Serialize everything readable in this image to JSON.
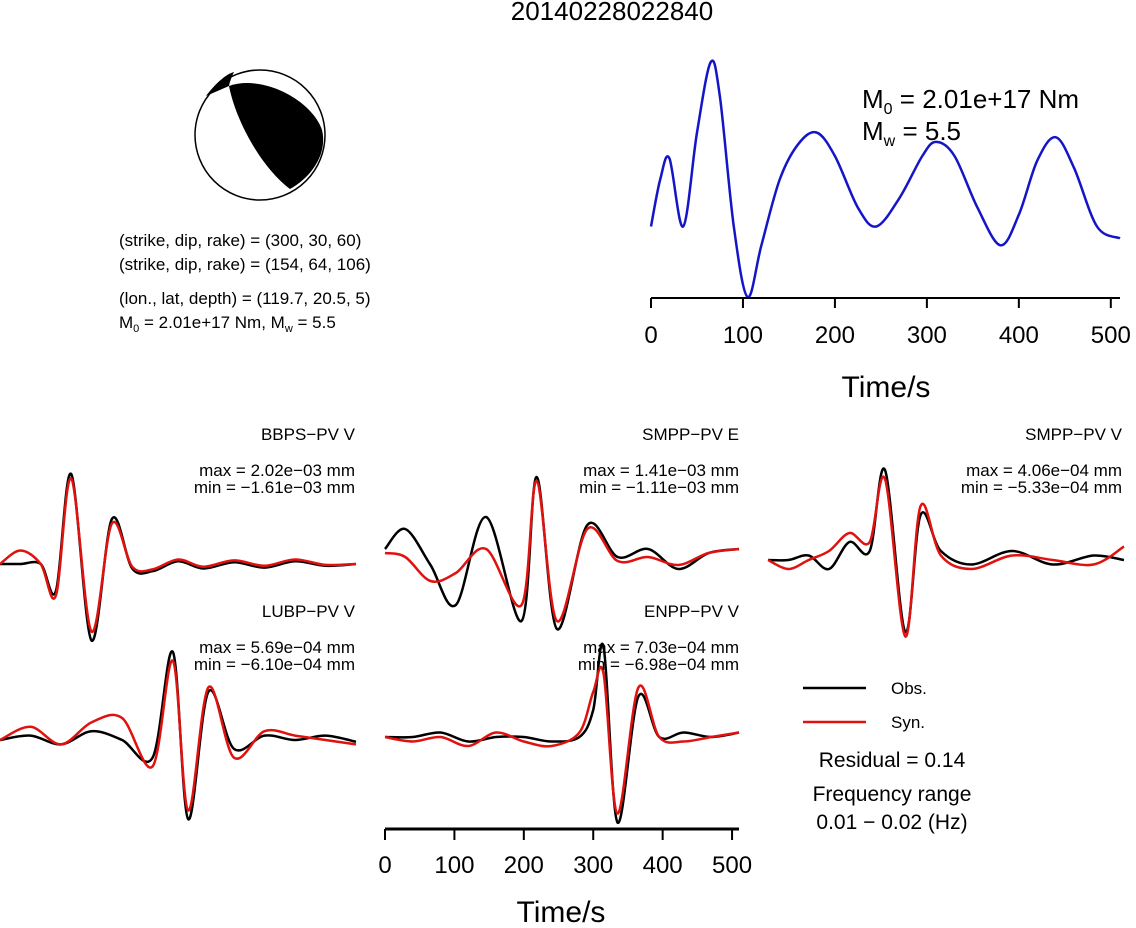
{
  "title": "20140228022840",
  "mechanism": {
    "plane1": "(strike, dip, rake) = (300, 30, 60)",
    "plane2": "(strike, dip, rake) = (154, 64, 106)",
    "location": "(lon., lat, depth) = (119.7, 20.5, 5)",
    "moment_line": {
      "m0_label": "M",
      "m0_sub": "0",
      "m0_value": " = 2.01e+17 Nm, M",
      "mw_sub": "w",
      "mw_value": " = 5.5"
    }
  },
  "stf": {
    "m0": {
      "label": "M",
      "sub": "0",
      "value": " = 2.01e+17 Nm"
    },
    "mw": {
      "label": "M",
      "sub": "w",
      "value": " = 5.5"
    },
    "xlabel": "Time/s",
    "ticks": [
      "0",
      "100",
      "200",
      "300",
      "400",
      "500"
    ]
  },
  "waveform_axis": {
    "xlabel": "Time/s",
    "ticks": [
      "0",
      "100",
      "200",
      "300",
      "400",
      "500"
    ]
  },
  "legend": {
    "obs": "Obs.",
    "syn": "Syn.",
    "residual": "Residual = 0.14",
    "freq_title": "Frequency range",
    "freq_value": "0.01 − 0.02 (Hz)"
  },
  "colors": {
    "observed": "#000000",
    "synthetic": "#e0120f",
    "stf": "#1515c8",
    "beachball_fill": "#000000"
  },
  "chart_data": [
    {
      "type": "line",
      "name": "source time function",
      "xlabel": "Time/s",
      "xlim": [
        0,
        510
      ],
      "x": [
        0,
        10,
        20,
        35,
        50,
        65,
        75,
        90,
        105,
        120,
        140,
        160,
        180,
        200,
        225,
        245,
        270,
        295,
        310,
        330,
        355,
        380,
        400,
        420,
        440,
        460,
        485,
        510
      ],
      "values": [
        0.3,
        0.5,
        0.59,
        0.3,
        0.7,
        1.0,
        0.85,
        0.3,
        0.0,
        0.22,
        0.5,
        0.65,
        0.7,
        0.6,
        0.38,
        0.3,
        0.42,
        0.6,
        0.66,
        0.6,
        0.38,
        0.22,
        0.35,
        0.58,
        0.68,
        0.55,
        0.3,
        0.25
      ],
      "annotations": [
        "M0 = 2.01e+17 Nm",
        "Mw = 5.5"
      ]
    },
    {
      "type": "line",
      "station": "BBPS−PV V",
      "max": "max = 2.02e−03 mm",
      "min": "min = −1.61e−03 mm",
      "x": [
        0,
        20,
        40,
        55,
        70,
        90,
        110,
        130,
        150,
        175,
        200,
        230,
        260,
        290,
        320,
        350
      ],
      "series": [
        {
          "name": "Obs.",
          "values": [
            0,
            0,
            0,
            -0.3,
            1.0,
            -0.85,
            0.5,
            -0.05,
            -0.08,
            0.03,
            -0.05,
            0.02,
            -0.04,
            0.03,
            -0.02,
            0
          ]
        },
        {
          "name": "Syn.",
          "values": [
            0,
            0.15,
            0,
            -0.35,
            0.95,
            -0.75,
            0.45,
            -0.03,
            -0.06,
            0.05,
            -0.03,
            0.04,
            -0.02,
            0.05,
            -0.01,
            0
          ]
        }
      ]
    },
    {
      "type": "line",
      "station": "SMPP−PV E",
      "max": "max = 1.41e−03 mm",
      "min": "min = −1.11e−03 mm",
      "x": [
        0,
        20,
        45,
        70,
        100,
        135,
        150,
        170,
        200,
        230,
        260,
        290,
        320,
        350
      ],
      "series": [
        {
          "name": "Obs.",
          "values": [
            0.1,
            0.35,
            -0.1,
            -0.6,
            0.5,
            -0.8,
            1.0,
            -0.9,
            0.4,
            0.0,
            0.1,
            -0.15,
            0.05,
            0.1
          ]
        },
        {
          "name": "Syn.",
          "values": [
            0.05,
            0.0,
            -0.3,
            -0.2,
            0.1,
            -0.6,
            0.95,
            -0.8,
            0.35,
            -0.05,
            0.0,
            -0.1,
            0.05,
            0.1
          ]
        }
      ]
    },
    {
      "type": "line",
      "station": "SMPP−PV V",
      "max": "max = 4.06e−04 mm",
      "min": "min = −5.33e−04 mm",
      "x": [
        0,
        20,
        40,
        60,
        80,
        100,
        115,
        135,
        150,
        170,
        200,
        240,
        280,
        320,
        350
      ],
      "series": [
        {
          "name": "Obs.",
          "values": [
            0.0,
            0.0,
            0.05,
            -0.1,
            0.2,
            0.1,
            1.0,
            -0.8,
            0.5,
            0.1,
            -0.05,
            0.1,
            -0.05,
            0.05,
            0.0
          ]
        },
        {
          "name": "Syn.",
          "values": [
            0.0,
            -0.1,
            0.0,
            0.1,
            0.3,
            0.2,
            0.9,
            -0.85,
            0.6,
            0.05,
            -0.1,
            0.05,
            0.0,
            -0.05,
            0.15
          ]
        }
      ]
    },
    {
      "type": "line",
      "station": "LUBP−PV V",
      "max": "max = 5.69e−04 mm",
      "min": "min = −6.10e−04 mm",
      "x": [
        0,
        30,
        60,
        90,
        120,
        150,
        170,
        185,
        205,
        230,
        260,
        290,
        320,
        350
      ],
      "series": [
        {
          "name": "Obs.",
          "values": [
            0.0,
            0.05,
            -0.05,
            0.1,
            0.0,
            -0.2,
            1.0,
            -0.9,
            0.55,
            -0.1,
            0.05,
            0.0,
            0.05,
            -0.02
          ]
        },
        {
          "name": "Syn.",
          "values": [
            0.0,
            0.15,
            -0.05,
            0.2,
            0.25,
            -0.3,
            0.9,
            -0.8,
            0.6,
            -0.2,
            0.1,
            0.05,
            0.0,
            -0.05
          ]
        }
      ]
    },
    {
      "type": "line",
      "station": "ENPP−PV V",
      "max": "max = 7.03e−04 mm",
      "min": "min = −6.98e−04 mm",
      "xlabel": "Time/s",
      "xlim": [
        0,
        510
      ],
      "x": [
        0,
        40,
        80,
        120,
        160,
        200,
        240,
        280,
        300,
        315,
        335,
        365,
        395,
        430,
        470,
        510
      ],
      "series": [
        {
          "name": "Obs.",
          "values": [
            0.0,
            0.0,
            0.05,
            -0.05,
            0.0,
            0.0,
            -0.05,
            0.0,
            0.3,
            1.0,
            -0.95,
            0.45,
            0.0,
            0.05,
            0.0,
            0.05
          ]
        },
        {
          "name": "Syn.",
          "values": [
            0.0,
            -0.05,
            0.0,
            -0.1,
            0.05,
            -0.05,
            -0.1,
            0.05,
            0.5,
            0.7,
            -0.85,
            0.55,
            0.0,
            -0.05,
            0.0,
            0.05
          ]
        }
      ]
    }
  ]
}
